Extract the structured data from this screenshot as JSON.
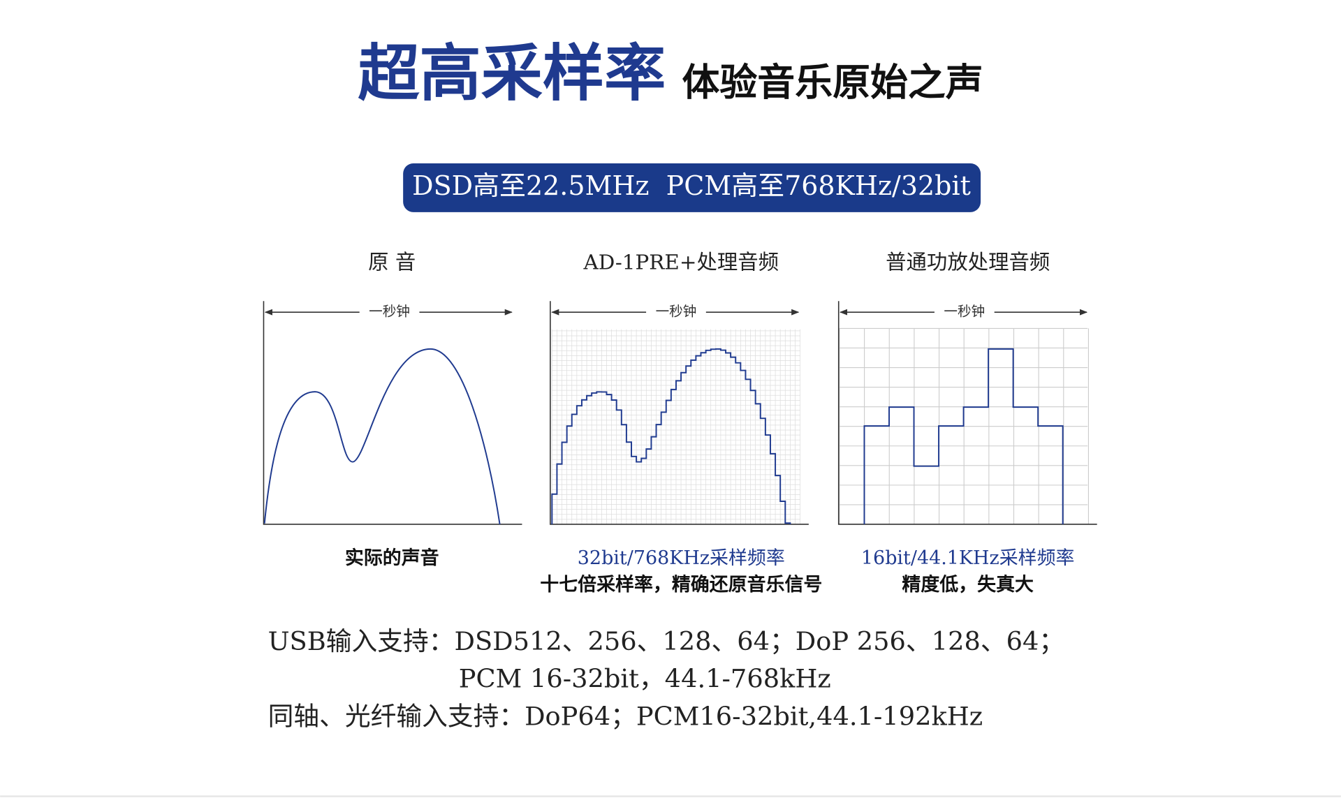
{
  "header": {
    "title": "超高采样率",
    "subtitle": "体验音乐原始之声"
  },
  "badge": "DSD高至22.5MHz  PCM高至768KHz/32bit",
  "panels": [
    {
      "heading": "原 音",
      "duration": "一秒钟",
      "caption": "实际的声音"
    },
    {
      "heading": "AD-1PRE+处理音频",
      "duration": "一秒钟",
      "caption": "32bit/768KHz采样频率",
      "note": "十七倍采样率，精确还原音乐信号"
    },
    {
      "heading": "普通功放处理音频",
      "duration": "一秒钟",
      "caption": "16bit/44.1KHz采样频率",
      "note": "精度低，失真大"
    }
  ],
  "specs": [
    "USB输入支持：DSD512、256、128、64；DoP 256、128、64；",
    "PCM 16-32bit，44.1-768kHz",
    "同轴、光纤输入支持：DoP64；PCM16-32bit,44.1-192kHz"
  ]
}
